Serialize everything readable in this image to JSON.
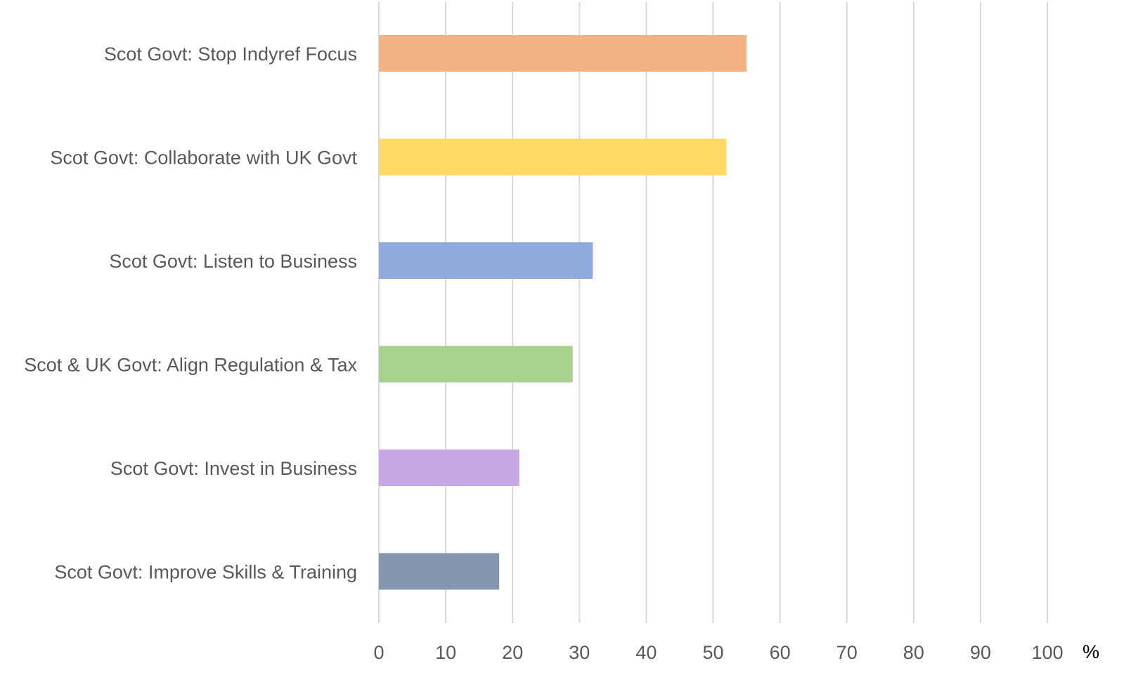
{
  "chart_data": {
    "type": "bar",
    "orientation": "horizontal",
    "categories": [
      "Scot Govt: Stop Indyref Focus",
      "Scot Govt: Collaborate with UK Govt",
      "Scot Govt: Listen to Business",
      "Scot & UK Govt: Align Regulation & Tax",
      "Scot Govt: Invest in Business",
      "Scot Govt: Improve Skills & Training"
    ],
    "values": [
      55,
      52,
      32,
      29,
      21,
      18
    ],
    "colors": [
      "#f4b183",
      "#ffd966",
      "#8faadc",
      "#a9d18e",
      "#c9a6e4",
      "#8497b0"
    ],
    "xlim": [
      0,
      100
    ],
    "xticks": [
      "0",
      "10",
      "20",
      "30",
      "40",
      "50",
      "60",
      "70",
      "80",
      "90",
      "100"
    ],
    "xunit": "%",
    "grid": true,
    "legend": "none"
  }
}
